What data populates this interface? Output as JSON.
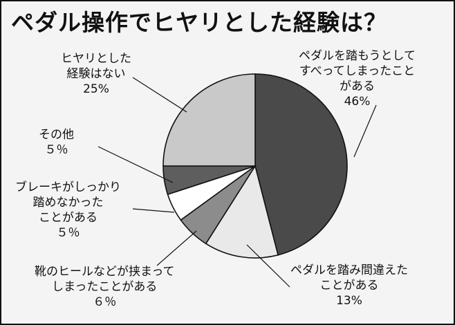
{
  "chart_data": {
    "type": "pie",
    "title": "ペダル操作でヒヤリとした経験は？",
    "slices": [
      {
        "label_lines": [
          "ペダルを踏もうとして",
          "すべってしまったこと",
          "がある"
        ],
        "pct_text": "46%",
        "value": 46,
        "color": "#4a4a4a"
      },
      {
        "label_lines": [
          "ペダルを踏み間違えた",
          "ことがある"
        ],
        "pct_text": "13%",
        "value": 13,
        "color": "#e9e9e9"
      },
      {
        "label_lines": [
          "靴のヒールなどが挟まって",
          "しまったことがある"
        ],
        "pct_text": "６％",
        "value": 6,
        "color": "#8c8c8c"
      },
      {
        "label_lines": [
          "ブレーキがしっかり",
          "踏めなかった",
          "ことがある"
        ],
        "pct_text": "５％",
        "value": 5,
        "color": "#ffffff"
      },
      {
        "label_lines": [
          "その他"
        ],
        "pct_text": "５％",
        "value": 5,
        "color": "#5e5e5e"
      },
      {
        "label_lines": [
          "ヒヤリとした",
          "経験はない"
        ],
        "pct_text": "25%",
        "value": 25,
        "color": "#c9c9c9"
      }
    ]
  }
}
